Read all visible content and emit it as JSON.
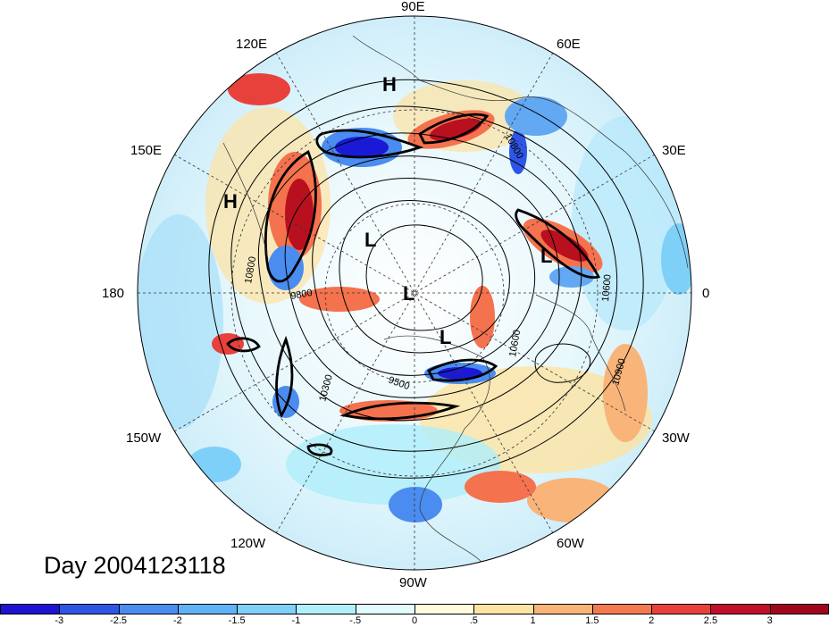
{
  "map": {
    "projection": "north polar stereographic",
    "day_label": "Day 2004123118",
    "longitude_labels": {
      "e90": "90E",
      "e60": "60E",
      "e30": "30E",
      "zero": "0",
      "w30": "30W",
      "w60": "60W",
      "w90": "90W",
      "w120": "120W",
      "w150": "150W",
      "d180": "180",
      "e150": "150E",
      "e120": "120E"
    },
    "pressure_centers": [
      "H",
      "H",
      "L",
      "L",
      "L",
      "L"
    ],
    "contour_labels": [
      "10800",
      "9800",
      "10600",
      "10300",
      "9500",
      "10900",
      "10800",
      "10600"
    ],
    "colors": {
      "neg_strong": "#1a1ad6",
      "neg": "#63a8f2",
      "neg_light": "#aeeefa",
      "neutral": "#ffffff",
      "pos_light": "#fde3a2",
      "pos": "#f4724e",
      "pos_strong": "#b9101f"
    }
  },
  "colorbar": {
    "ticks": [
      "-3",
      "-2.5",
      "-2",
      "-1.5",
      "-1",
      "-.5",
      "0",
      ".5",
      "1",
      "1.5",
      "2",
      "2.5",
      "3"
    ],
    "colors": [
      "#1c14d2",
      "#2f55e6",
      "#4a8cef",
      "#5fb2f4",
      "#7fd0f8",
      "#b0f0fb",
      "#e2fbfd",
      "#fffbdc",
      "#fde3a2",
      "#f9b47a",
      "#f37a4f",
      "#e8413b",
      "#c0102a",
      "#a0061c"
    ]
  }
}
